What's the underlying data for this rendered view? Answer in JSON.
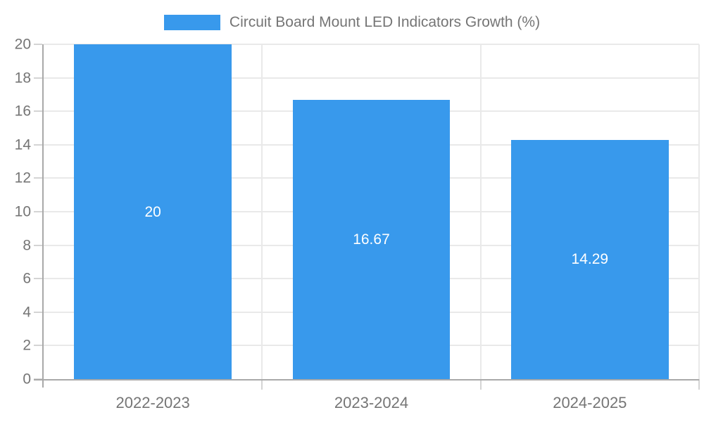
{
  "chart_data": {
    "type": "bar",
    "title": "Circuit Board Mount LED Indicators Growth (%)",
    "categories": [
      "2022-2023",
      "2023-2024",
      "2024-2025"
    ],
    "values": [
      20,
      16.67,
      14.29
    ],
    "value_labels": [
      "20",
      "16.67",
      "14.29"
    ],
    "ylim": [
      0,
      20
    ],
    "yticks": [
      0,
      2,
      4,
      6,
      8,
      10,
      12,
      14,
      16,
      18,
      20
    ],
    "grid": true,
    "legend_position": "top-center",
    "colors": {
      "bar": "#3899ec",
      "value_label": "#ffffff",
      "axis_text": "#757575",
      "axis_line": "#a9a9a9",
      "grid_line": "#e9e9e9",
      "tick_line": "#d4d4d4"
    }
  }
}
